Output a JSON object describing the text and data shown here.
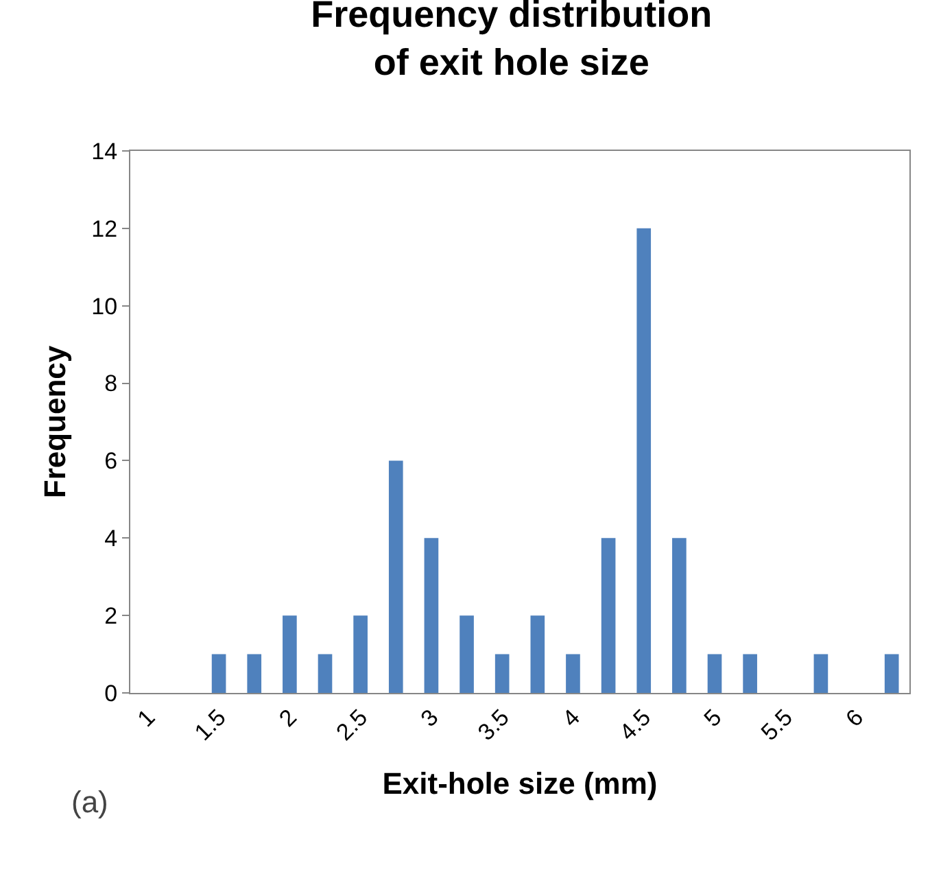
{
  "chart_data": {
    "type": "bar",
    "title": "Frequency distribution of exit hole size",
    "xlabel": "Exit-hole size (mm)",
    "ylabel": "Frequency",
    "categories": [
      "1",
      null,
      "1.5",
      null,
      "2",
      null,
      "2.5",
      null,
      "3",
      null,
      "3.5",
      null,
      "4",
      null,
      "4.5",
      null,
      "5",
      null,
      "5.5",
      null,
      "6",
      null
    ],
    "values": [
      0,
      0,
      1,
      1,
      2,
      1,
      2,
      6,
      4,
      2,
      1,
      2,
      1,
      4,
      12,
      4,
      1,
      1,
      0,
      1,
      0,
      1
    ],
    "color": "#4f81bd",
    "ylim": [
      0,
      14
    ],
    "yticks": [
      0,
      2,
      4,
      6,
      8,
      10,
      12,
      14
    ],
    "grid": false,
    "annotations": [
      "(a)"
    ]
  }
}
